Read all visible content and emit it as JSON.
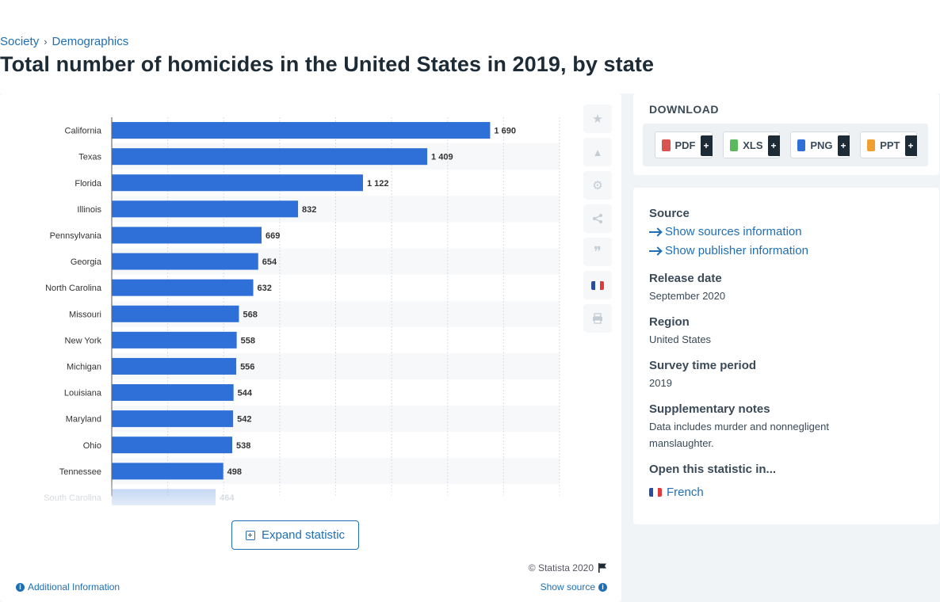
{
  "breadcrumb": {
    "items": [
      "Society",
      "Demographics"
    ],
    "separator": "›"
  },
  "page_title": "Total number of homicides in the United States in 2019, by state",
  "chart_data": {
    "type": "bar",
    "orientation": "horizontal",
    "categories": [
      "California",
      "Texas",
      "Florida",
      "Illinois",
      "Pennsylvania",
      "Georgia",
      "North Carolina",
      "Missouri",
      "New York",
      "Michigan",
      "Louisiana",
      "Maryland",
      "Ohio",
      "Tennessee",
      "South Carolina"
    ],
    "values": [
      1690,
      1409,
      1122,
      832,
      669,
      654,
      632,
      568,
      558,
      556,
      544,
      542,
      538,
      498,
      464
    ],
    "value_labels": [
      "1 690",
      "1 409",
      "1 122",
      "832",
      "669",
      "654",
      "632",
      "568",
      "558",
      "556",
      "544",
      "542",
      "538",
      "498",
      "464"
    ],
    "xlim": [
      0,
      2000
    ],
    "grid": true,
    "bar_color": "#2e6fd8"
  },
  "chart_card": {
    "expand_label": "Expand statistic",
    "copyright": "© Statista 2020",
    "additional_info": "Additional Information",
    "show_source": "Show source"
  },
  "tools": [
    {
      "name": "star-icon",
      "glyph": "★"
    },
    {
      "name": "bell-icon",
      "glyph": "🔔"
    },
    {
      "name": "gear-icon",
      "glyph": "⚙"
    },
    {
      "name": "share-icon",
      "glyph": "⋖"
    },
    {
      "name": "quote-icon",
      "glyph": "❞"
    },
    {
      "name": "french-flag-icon",
      "glyph": ""
    },
    {
      "name": "print-icon",
      "glyph": "⎙"
    }
  ],
  "download": {
    "title": "DOWNLOAD",
    "buttons": [
      {
        "label": "PDF",
        "color": "#d9534f"
      },
      {
        "label": "XLS",
        "color": "#5cb85c"
      },
      {
        "label": "PNG",
        "color": "#2e6fd8"
      },
      {
        "label": "PPT",
        "color": "#f0a030"
      }
    ],
    "plus": "+"
  },
  "info": {
    "source_heading": "Source",
    "show_sources": "Show sources information",
    "show_publisher": "Show publisher information",
    "release_heading": "Release date",
    "release_value": "September 2020",
    "region_heading": "Region",
    "region_value": "United States",
    "survey_heading": "Survey time period",
    "survey_value": "2019",
    "notes_heading": "Supplementary notes",
    "notes_value": "Data includes murder and nonnegligent manslaughter.",
    "open_heading": "Open this statistic in...",
    "open_french": "French"
  }
}
